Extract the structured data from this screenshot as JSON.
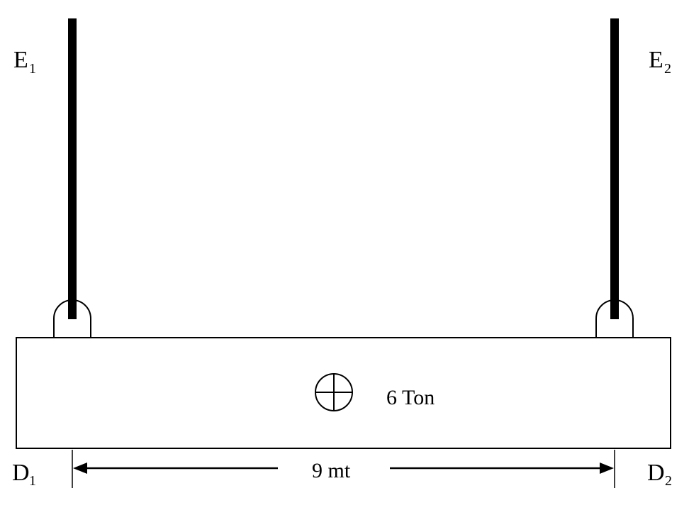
{
  "colors": {
    "ink": "#000000",
    "paper": "#ffffff"
  },
  "labels": {
    "e1": {
      "main": "E",
      "sub": "1"
    },
    "e2": {
      "main": "E",
      "sub": "2"
    },
    "d1": {
      "main": "D",
      "sub": "1"
    },
    "d2": {
      "main": "D",
      "sub": "2"
    },
    "load": "6 Ton",
    "span": "9 mt"
  },
  "icons": {
    "center_of_gravity": "circle-cross-icon"
  }
}
